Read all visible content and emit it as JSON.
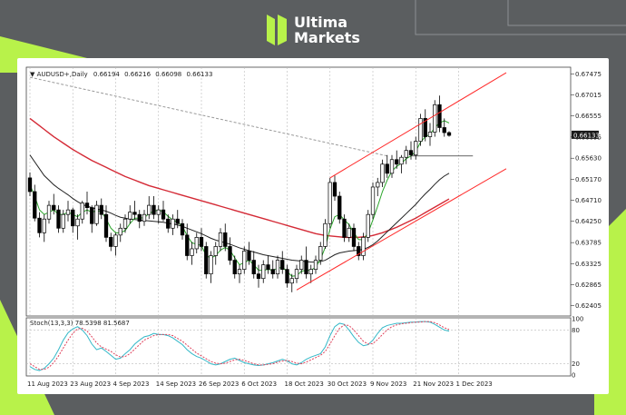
{
  "brand": {
    "line1": "Ultima",
    "line2": "Markets",
    "logo_icon": "ultima-logo-icon",
    "accent": "#b8f24a"
  },
  "chart_data": {
    "type": "candlestick",
    "title": "AUDUSD+,Daily",
    "ohlc": {
      "open": "0.66194",
      "high": "0.66216",
      "low": "0.66098",
      "close": "0.66133"
    },
    "price_tag": "0.66133",
    "y_ticks": [
      "0.67475",
      "0.67015",
      "0.66555",
      "0.66095",
      "0.65630",
      "0.65170",
      "0.64710",
      "0.64250",
      "0.63785",
      "0.63325",
      "0.62865",
      "0.62405"
    ],
    "ylim": [
      0.6218,
      0.6762
    ],
    "x_labels": [
      {
        "i": 0,
        "label": "11 Aug 2023"
      },
      {
        "i": 9,
        "label": "23 Aug 2023"
      },
      {
        "i": 18,
        "label": "4 Sep 2023"
      },
      {
        "i": 27,
        "label": "14 Sep 2023"
      },
      {
        "i": 36,
        "label": "26 Sep 2023"
      },
      {
        "i": 45,
        "label": "6 Oct 2023"
      },
      {
        "i": 54,
        "label": "18 Oct 2023"
      },
      {
        "i": 63,
        "label": "30 Oct 2023"
      },
      {
        "i": 72,
        "label": "9 Nov 2023"
      },
      {
        "i": 81,
        "label": "21 Nov 2023"
      },
      {
        "i": 90,
        "label": "1 Dec 2023"
      }
    ],
    "candles": [
      [
        0.652,
        0.6532,
        0.648,
        0.649
      ],
      [
        0.649,
        0.6505,
        0.6425,
        0.6432
      ],
      [
        0.6432,
        0.6445,
        0.639,
        0.64
      ],
      [
        0.64,
        0.644,
        0.638,
        0.643
      ],
      [
        0.643,
        0.647,
        0.642,
        0.646
      ],
      [
        0.646,
        0.6485,
        0.644,
        0.645
      ],
      [
        0.645,
        0.646,
        0.64,
        0.641
      ],
      [
        0.641,
        0.645,
        0.64,
        0.644
      ],
      [
        0.644,
        0.647,
        0.6425,
        0.645
      ],
      [
        0.645,
        0.6455,
        0.64,
        0.6415
      ],
      [
        0.6415,
        0.644,
        0.6385,
        0.643
      ],
      [
        0.643,
        0.647,
        0.642,
        0.6465
      ],
      [
        0.6465,
        0.649,
        0.644,
        0.6455
      ],
      [
        0.6455,
        0.646,
        0.64,
        0.642
      ],
      [
        0.642,
        0.647,
        0.6415,
        0.646
      ],
      [
        0.646,
        0.6475,
        0.643,
        0.644
      ],
      [
        0.644,
        0.646,
        0.638,
        0.639
      ],
      [
        0.639,
        0.64,
        0.636,
        0.637
      ],
      [
        0.637,
        0.64,
        0.635,
        0.6395
      ],
      [
        0.6395,
        0.642,
        0.638,
        0.641
      ],
      [
        0.641,
        0.644,
        0.64,
        0.643
      ],
      [
        0.643,
        0.646,
        0.642,
        0.6445
      ],
      [
        0.6445,
        0.647,
        0.643,
        0.644
      ],
      [
        0.644,
        0.645,
        0.641,
        0.6425
      ],
      [
        0.6425,
        0.645,
        0.6415,
        0.644
      ],
      [
        0.644,
        0.648,
        0.643,
        0.646
      ],
      [
        0.646,
        0.648,
        0.643,
        0.644
      ],
      [
        0.644,
        0.646,
        0.642,
        0.645
      ],
      [
        0.645,
        0.647,
        0.6425,
        0.643
      ],
      [
        0.643,
        0.644,
        0.64,
        0.641
      ],
      [
        0.641,
        0.644,
        0.6395,
        0.643
      ],
      [
        0.643,
        0.645,
        0.641,
        0.642
      ],
      [
        0.642,
        0.643,
        0.6385,
        0.6395
      ],
      [
        0.6395,
        0.642,
        0.634,
        0.635
      ],
      [
        0.635,
        0.638,
        0.633,
        0.6365
      ],
      [
        0.6365,
        0.64,
        0.6355,
        0.639
      ],
      [
        0.639,
        0.641,
        0.636,
        0.637
      ],
      [
        0.637,
        0.638,
        0.63,
        0.631
      ],
      [
        0.631,
        0.636,
        0.629,
        0.635
      ],
      [
        0.635,
        0.638,
        0.633,
        0.637
      ],
      [
        0.637,
        0.641,
        0.636,
        0.64
      ],
      [
        0.64,
        0.642,
        0.636,
        0.637
      ],
      [
        0.637,
        0.639,
        0.633,
        0.634
      ],
      [
        0.634,
        0.635,
        0.63,
        0.631
      ],
      [
        0.631,
        0.633,
        0.629,
        0.632
      ],
      [
        0.632,
        0.637,
        0.631,
        0.636
      ],
      [
        0.636,
        0.638,
        0.633,
        0.634
      ],
      [
        0.634,
        0.636,
        0.63,
        0.631
      ],
      [
        0.631,
        0.633,
        0.628,
        0.63
      ],
      [
        0.63,
        0.634,
        0.629,
        0.633
      ],
      [
        0.633,
        0.635,
        0.631,
        0.632
      ],
      [
        0.632,
        0.634,
        0.63,
        0.631
      ],
      [
        0.631,
        0.635,
        0.63,
        0.634
      ],
      [
        0.634,
        0.636,
        0.631,
        0.632
      ],
      [
        0.632,
        0.633,
        0.628,
        0.629
      ],
      [
        0.629,
        0.631,
        0.627,
        0.63
      ],
      [
        0.63,
        0.633,
        0.629,
        0.632
      ],
      [
        0.632,
        0.635,
        0.631,
        0.634
      ],
      [
        0.634,
        0.637,
        0.63,
        0.631
      ],
      [
        0.631,
        0.633,
        0.629,
        0.632
      ],
      [
        0.632,
        0.635,
        0.631,
        0.634
      ],
      [
        0.634,
        0.638,
        0.633,
        0.637
      ],
      [
        0.637,
        0.643,
        0.6365,
        0.642
      ],
      [
        0.642,
        0.652,
        0.641,
        0.651
      ],
      [
        0.651,
        0.6525,
        0.647,
        0.648
      ],
      [
        0.648,
        0.649,
        0.642,
        0.643
      ],
      [
        0.643,
        0.644,
        0.638,
        0.639
      ],
      [
        0.639,
        0.642,
        0.638,
        0.641
      ],
      [
        0.641,
        0.642,
        0.636,
        0.637
      ],
      [
        0.637,
        0.638,
        0.634,
        0.635
      ],
      [
        0.635,
        0.64,
        0.634,
        0.639
      ],
      [
        0.639,
        0.645,
        0.638,
        0.644
      ],
      [
        0.644,
        0.651,
        0.643,
        0.65
      ],
      [
        0.65,
        0.652,
        0.648,
        0.651
      ],
      [
        0.651,
        0.656,
        0.65,
        0.655
      ],
      [
        0.655,
        0.657,
        0.652,
        0.653
      ],
      [
        0.653,
        0.657,
        0.652,
        0.656
      ],
      [
        0.656,
        0.658,
        0.654,
        0.655
      ],
      [
        0.655,
        0.657,
        0.653,
        0.6565
      ],
      [
        0.6565,
        0.659,
        0.655,
        0.658
      ],
      [
        0.658,
        0.66,
        0.656,
        0.657
      ],
      [
        0.657,
        0.661,
        0.656,
        0.66
      ],
      [
        0.66,
        0.666,
        0.659,
        0.665
      ],
      [
        0.665,
        0.667,
        0.66,
        0.661
      ],
      [
        0.661,
        0.664,
        0.659,
        0.662
      ],
      [
        0.662,
        0.669,
        0.661,
        0.668
      ],
      [
        0.668,
        0.67,
        0.662,
        0.663
      ],
      [
        0.663,
        0.665,
        0.661,
        0.6619
      ],
      [
        0.6619,
        0.6622,
        0.661,
        0.6613
      ]
    ],
    "ma_fast": [
      0.6505,
      0.648,
      0.645,
      0.644,
      0.6445,
      0.645,
      0.644,
      0.644,
      0.6445,
      0.644,
      0.6435,
      0.6445,
      0.645,
      0.6445,
      0.6448,
      0.6447,
      0.643,
      0.641,
      0.64,
      0.64,
      0.6405,
      0.642,
      0.6432,
      0.6432,
      0.6433,
      0.6442,
      0.6447,
      0.645,
      0.6446,
      0.6436,
      0.6428,
      0.6423,
      0.6414,
      0.6394,
      0.6378,
      0.6375,
      0.6372,
      0.635,
      0.6345,
      0.635,
      0.6362,
      0.6368,
      0.6362,
      0.6345,
      0.633,
      0.6335,
      0.634,
      0.633,
      0.6318,
      0.6318,
      0.632,
      0.6318,
      0.6322,
      0.6325,
      0.6315,
      0.6305,
      0.6306,
      0.6316,
      0.6318,
      0.6318,
      0.6325,
      0.6342,
      0.6368,
      0.6408,
      0.6435,
      0.644,
      0.6428,
      0.6418,
      0.64,
      0.6385,
      0.6385,
      0.64,
      0.6428,
      0.6458,
      0.649,
      0.6515,
      0.6535,
      0.6545,
      0.6552,
      0.6562,
      0.6568,
      0.6578,
      0.6598,
      0.661,
      0.6615,
      0.663,
      0.664,
      0.6645,
      0.664
    ],
    "ma_mid": [
      0.657,
      0.6555,
      0.654,
      0.6525,
      0.6515,
      0.6505,
      0.6497,
      0.649,
      0.6483,
      0.6475,
      0.6468,
      0.6462,
      0.6458,
      0.6455,
      0.6452,
      0.645,
      0.6447,
      0.6443,
      0.6438,
      0.6434,
      0.6432,
      0.643,
      0.6429,
      0.6428,
      0.6427,
      0.6426,
      0.6425,
      0.6424,
      0.6423,
      0.6421,
      0.6419,
      0.6417,
      0.6414,
      0.641,
      0.6406,
      0.6402,
      0.6398,
      0.6393,
      0.6388,
      0.6384,
      0.6381,
      0.6378,
      0.6375,
      0.6371,
      0.6367,
      0.6364,
      0.6361,
      0.6358,
      0.6355,
      0.6352,
      0.635,
      0.6348,
      0.6346,
      0.6344,
      0.6342,
      0.634,
      0.6339,
      0.6338,
      0.6337,
      0.6336,
      0.6336,
      0.6337,
      0.634,
      0.6346,
      0.6352,
      0.6356,
      0.6358,
      0.636,
      0.6361,
      0.6362,
      0.6364,
      0.6368,
      0.6374,
      0.6382,
      0.6392,
      0.6402,
      0.6412,
      0.6422,
      0.6432,
      0.6442,
      0.6452,
      0.6462,
      0.6474,
      0.6485,
      0.6495,
      0.6506,
      0.6516,
      0.6524,
      0.653
    ],
    "ma_slow": [
      0.665,
      0.6642,
      0.6634,
      0.6626,
      0.6618,
      0.661,
      0.6603,
      0.6596,
      0.6589,
      0.6582,
      0.6576,
      0.657,
      0.6564,
      0.6558,
      0.6553,
      0.6548,
      0.6543,
      0.6538,
      0.6533,
      0.6528,
      0.6523,
      0.6519,
      0.6515,
      0.6511,
      0.6507,
      0.6503,
      0.65,
      0.6497,
      0.6494,
      0.6491,
      0.6488,
      0.6485,
      0.6482,
      0.6479,
      0.6476,
      0.6473,
      0.647,
      0.6467,
      0.6464,
      0.6461,
      0.6458,
      0.6455,
      0.6452,
      0.6449,
      0.6446,
      0.6443,
      0.644,
      0.6437,
      0.6434,
      0.6431,
      0.6428,
      0.6425,
      0.6422,
      0.6419,
      0.6416,
      0.6413,
      0.641,
      0.6407,
      0.6404,
      0.6401,
      0.6398,
      0.6396,
      0.6394,
      0.6393,
      0.6392,
      0.6391,
      0.639,
      0.639,
      0.639,
      0.639,
      0.6391,
      0.6392,
      0.6394,
      0.6397,
      0.64,
      0.6404,
      0.6408,
      0.6412,
      0.6417,
      0.6422,
      0.6427,
      0.6432,
      0.6438,
      0.6444,
      0.645,
      0.6456,
      0.6462,
      0.6468,
      0.6474
    ],
    "ma_200": {
      "start_i": 0,
      "end_i": 75,
      "start_v": 0.674,
      "end_v": 0.6568
    },
    "channel_upper": [
      [
        63,
        0.652
      ],
      [
        100,
        0.675
      ]
    ],
    "channel_lower": [
      [
        56,
        0.6275
      ],
      [
        100,
        0.654
      ]
    ],
    "hline": {
      "i1": 80,
      "i2": 93,
      "value": 0.6568
    },
    "stoch_label": "Stoch(13,3,3) 78.5398 81.5687",
    "stoch_ticks": [
      "100",
      "80",
      "20",
      "0"
    ],
    "stoch_main": [
      15,
      10,
      8,
      12,
      20,
      30,
      45,
      62,
      75,
      82,
      86,
      80,
      70,
      55,
      45,
      48,
      42,
      35,
      28,
      30,
      38,
      45,
      55,
      62,
      68,
      70,
      74,
      72,
      72,
      70,
      66,
      60,
      54,
      45,
      38,
      33,
      30,
      25,
      20,
      18,
      20,
      24,
      28,
      30,
      26,
      22,
      20,
      18,
      17,
      18,
      20,
      22,
      25,
      28,
      25,
      20,
      18,
      22,
      28,
      32,
      35,
      38,
      50,
      70,
      86,
      92,
      90,
      80,
      68,
      58,
      52,
      54,
      62,
      74,
      84,
      88,
      90,
      92,
      92,
      93,
      94,
      94,
      95,
      95,
      94,
      90,
      85,
      80,
      78
    ],
    "stoch_signal": [
      20,
      15,
      10,
      10,
      14,
      22,
      34,
      48,
      62,
      74,
      82,
      83,
      78,
      68,
      57,
      50,
      46,
      42,
      36,
      32,
      33,
      38,
      46,
      54,
      62,
      66,
      70,
      72,
      72,
      72,
      70,
      65,
      60,
      53,
      46,
      39,
      34,
      29,
      24,
      21,
      20,
      21,
      24,
      27,
      28,
      26,
      23,
      20,
      18,
      18,
      19,
      20,
      23,
      25,
      26,
      24,
      21,
      20,
      23,
      27,
      31,
      35,
      42,
      55,
      70,
      83,
      89,
      88,
      80,
      70,
      60,
      55,
      56,
      63,
      72,
      80,
      86,
      89,
      91,
      92,
      93,
      94,
      94,
      95,
      95,
      93,
      89,
      84,
      81
    ]
  },
  "colors": {
    "up": "#000000",
    "down": "#000000",
    "ma_fast": "#2aa52a",
    "ma_mid": "#222222",
    "ma_slow": "#d42a36",
    "ma_200": "#9a9a9a",
    "channel": "#ff2a2a",
    "stoch_main": "#33b8c8",
    "stoch_signal": "#e0405a"
  }
}
